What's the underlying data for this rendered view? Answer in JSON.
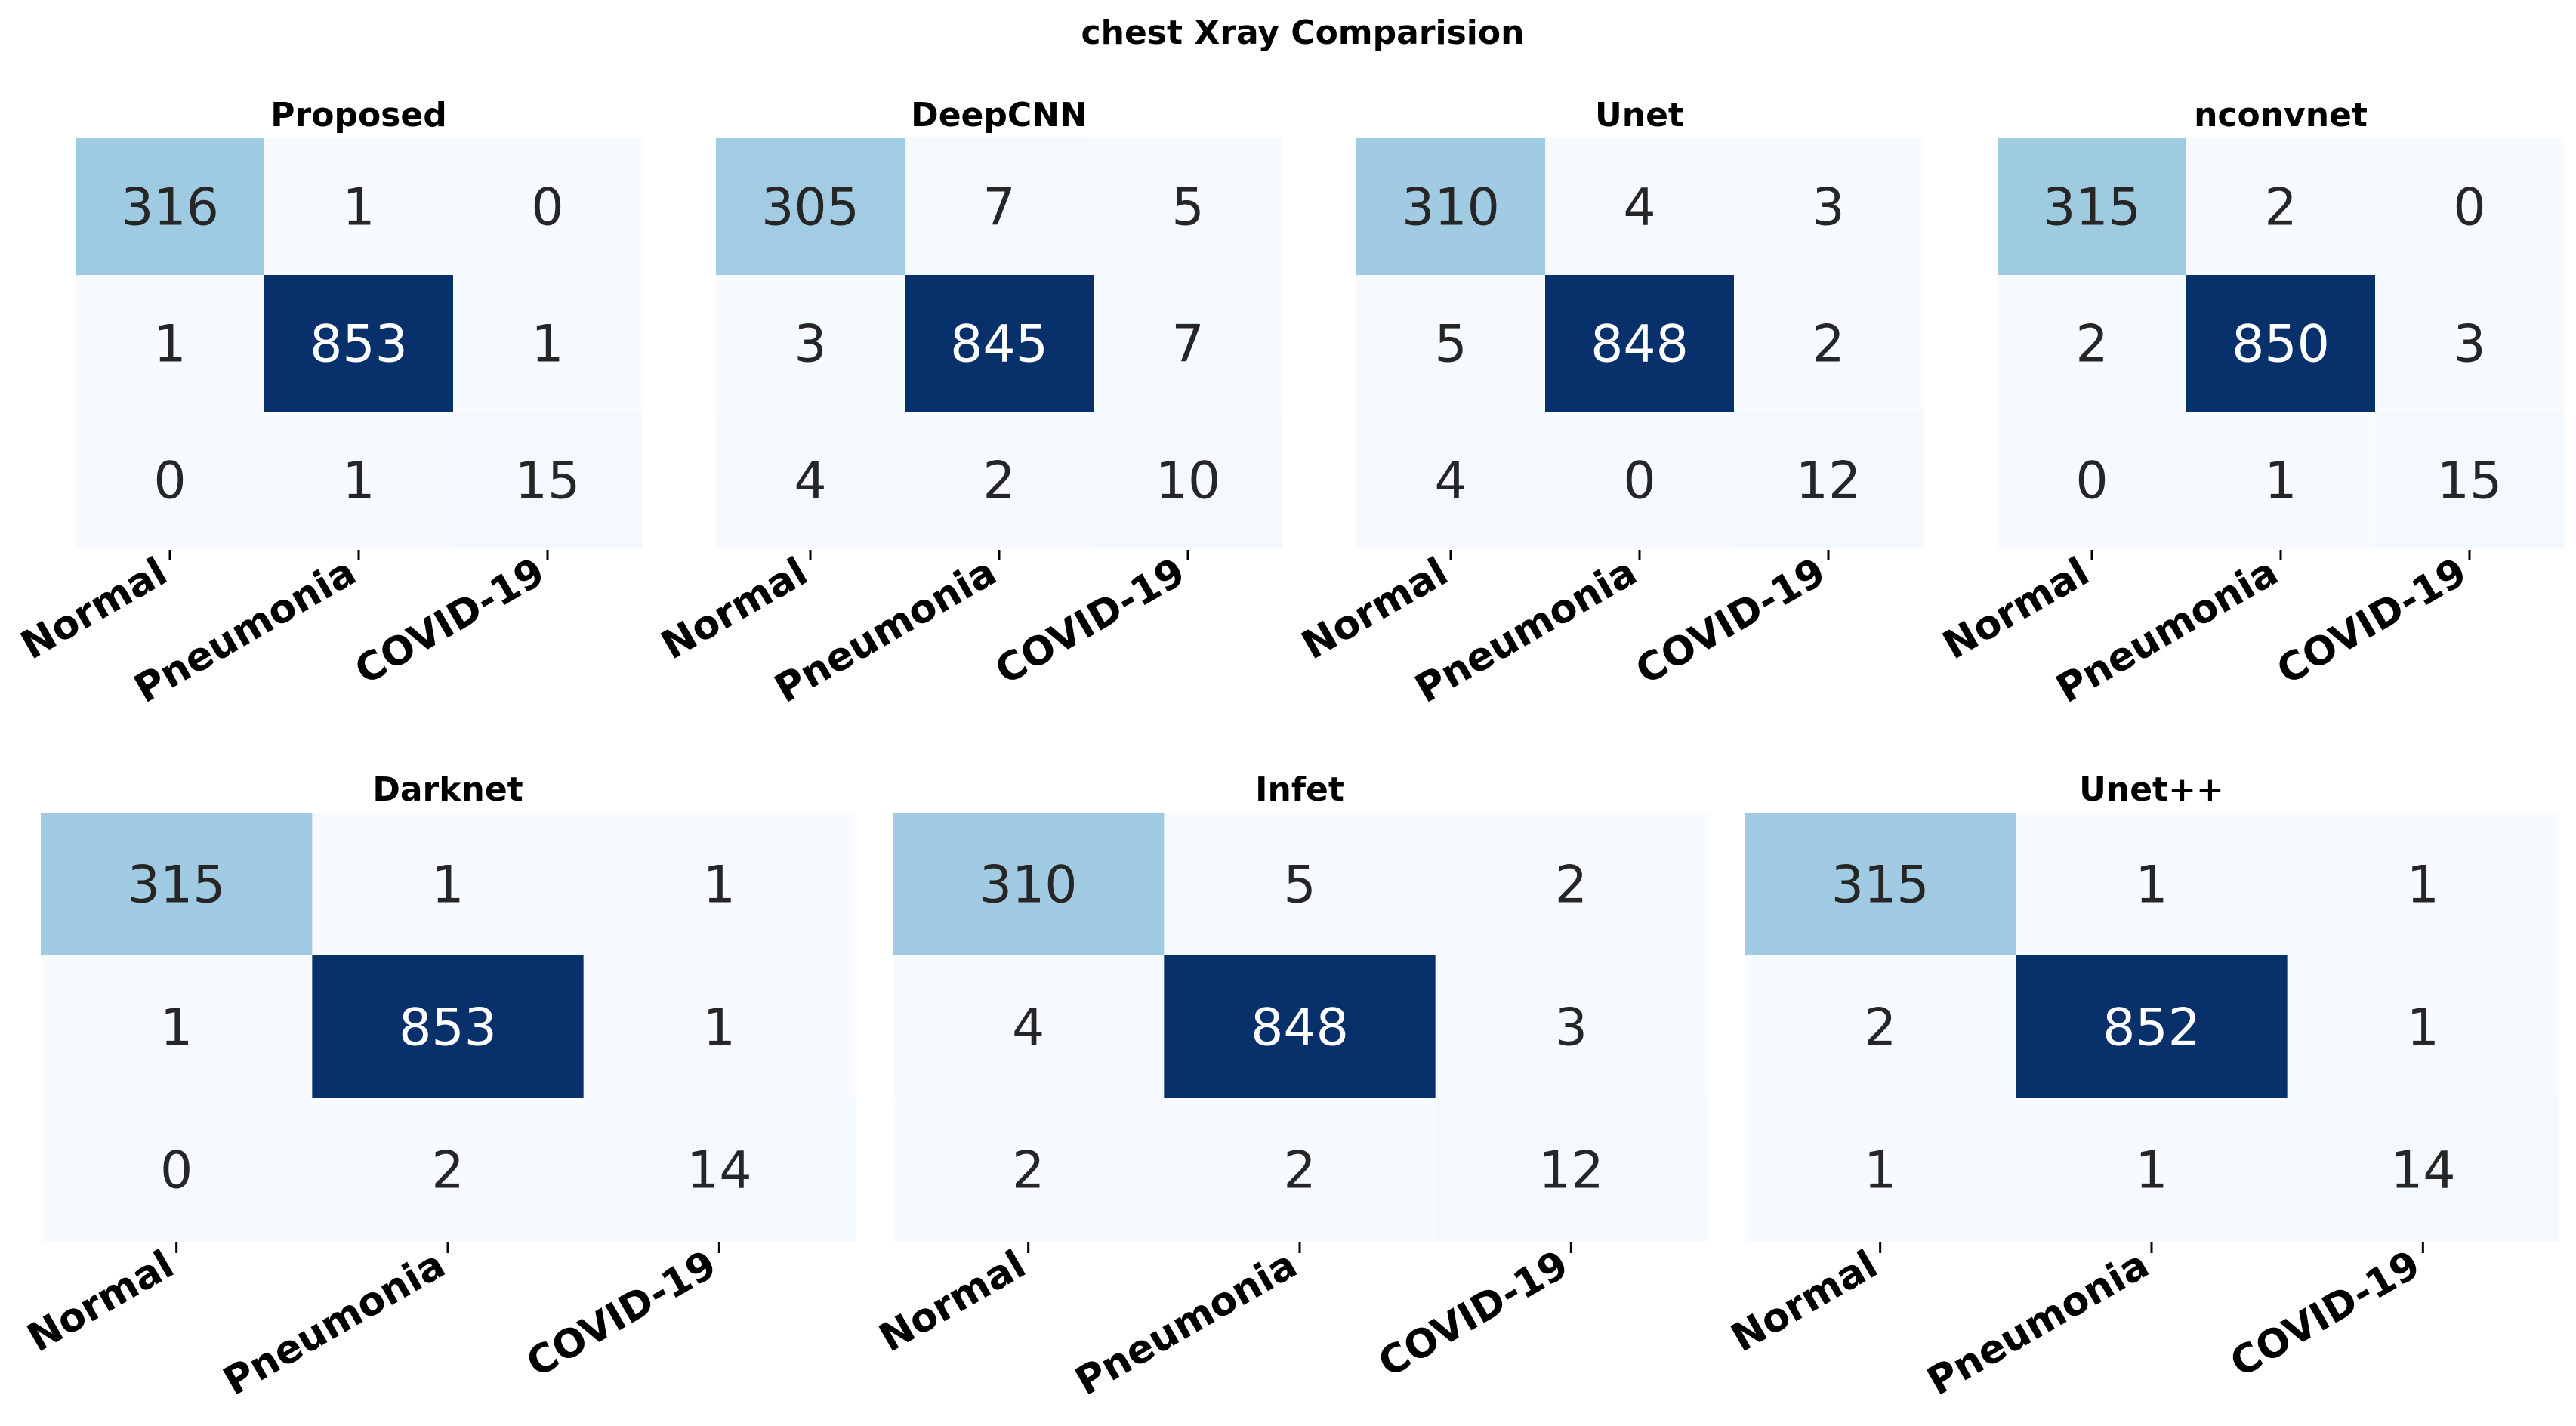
{
  "title": "chest Xray Comparision",
  "chart_data": [
    {
      "type": "heatmap",
      "title": "Proposed",
      "x_tick_labels": [
        "Normal",
        "Pneumonia",
        "COVID-19"
      ],
      "matrix": [
        [
          316,
          1,
          0
        ],
        [
          1,
          853,
          1
        ],
        [
          0,
          1,
          15
        ]
      ],
      "colormap": "Blues",
      "value_range": [
        0,
        853
      ],
      "colorbar": false
    },
    {
      "type": "heatmap",
      "title": "DeepCNN",
      "x_tick_labels": [
        "Normal",
        "Pneumonia",
        "COVID-19"
      ],
      "matrix": [
        [
          305,
          7,
          5
        ],
        [
          3,
          845,
          7
        ],
        [
          4,
          2,
          10
        ]
      ],
      "colormap": "Blues",
      "value_range": [
        0,
        845
      ],
      "colorbar": false
    },
    {
      "type": "heatmap",
      "title": "Unet",
      "x_tick_labels": [
        "Normal",
        "Pneumonia",
        "COVID-19"
      ],
      "matrix": [
        [
          310,
          4,
          3
        ],
        [
          5,
          848,
          2
        ],
        [
          4,
          0,
          12
        ]
      ],
      "colormap": "Blues",
      "value_range": [
        0,
        848
      ],
      "colorbar": false
    },
    {
      "type": "heatmap",
      "title": "nconvnet",
      "x_tick_labels": [
        "Normal",
        "Pneumonia",
        "COVID-19"
      ],
      "matrix": [
        [
          315,
          2,
          0
        ],
        [
          2,
          850,
          3
        ],
        [
          0,
          1,
          15
        ]
      ],
      "colormap": "Blues",
      "value_range": [
        0,
        850
      ],
      "colorbar": false
    },
    {
      "type": "heatmap",
      "title": "Darknet",
      "x_tick_labels": [
        "Normal",
        "Pneumonia",
        "COVID-19"
      ],
      "matrix": [
        [
          315,
          1,
          1
        ],
        [
          1,
          853,
          1
        ],
        [
          0,
          2,
          14
        ]
      ],
      "colormap": "Blues",
      "value_range": [
        0,
        853
      ],
      "colorbar": false
    },
    {
      "type": "heatmap",
      "title": "Infet",
      "x_tick_labels": [
        "Normal",
        "Pneumonia",
        "COVID-19"
      ],
      "matrix": [
        [
          310,
          5,
          2
        ],
        [
          4,
          848,
          3
        ],
        [
          2,
          2,
          12
        ]
      ],
      "colormap": "Blues",
      "value_range": [
        0,
        848
      ],
      "colorbar": false
    },
    {
      "type": "heatmap",
      "title": "Unet++",
      "x_tick_labels": [
        "Normal",
        "Pneumonia",
        "COVID-19"
      ],
      "matrix": [
        [
          315,
          1,
          1
        ],
        [
          2,
          852,
          1
        ],
        [
          1,
          1,
          14
        ]
      ],
      "colormap": "Blues",
      "value_range": [
        0,
        852
      ],
      "colorbar": false
    }
  ]
}
